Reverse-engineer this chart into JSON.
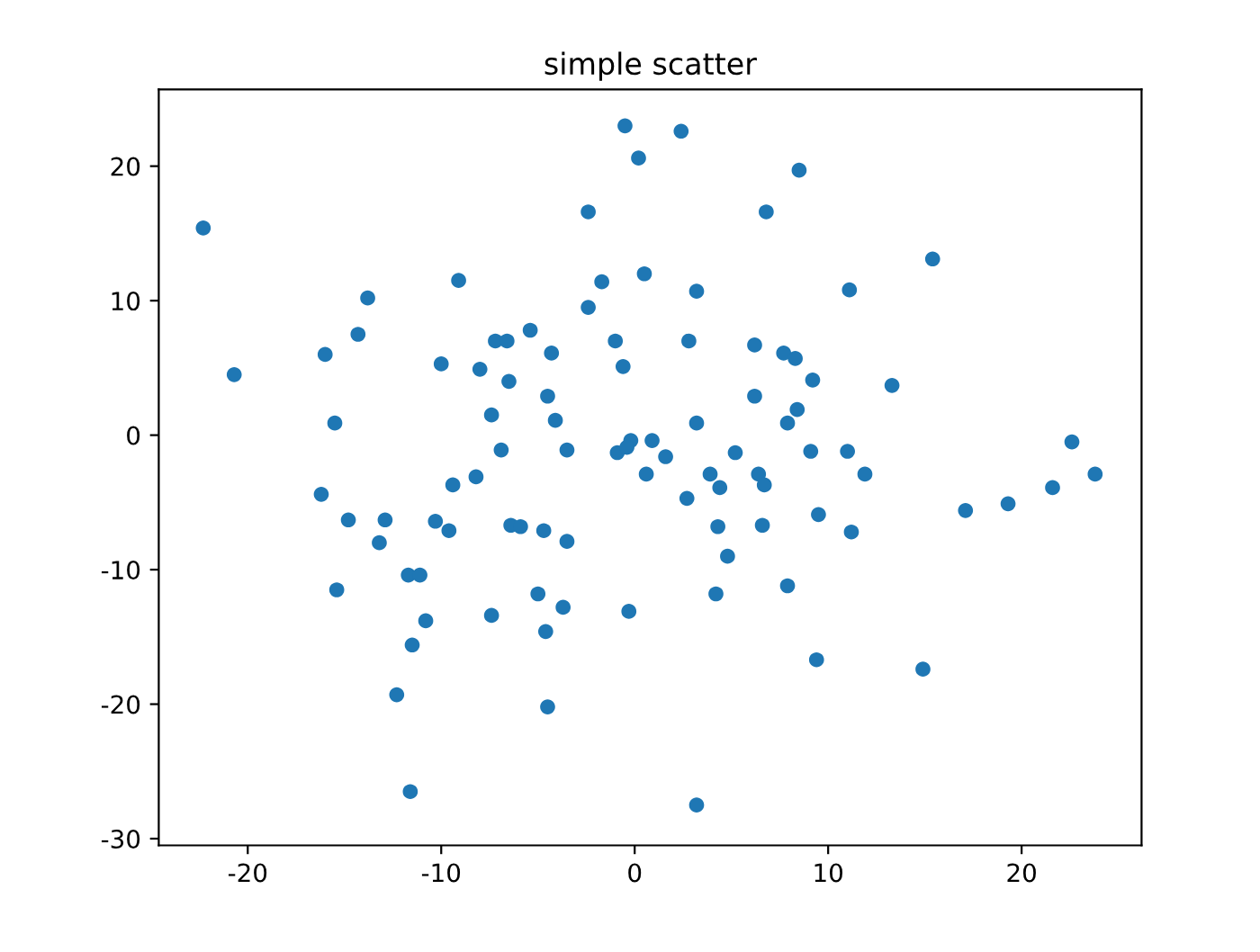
{
  "chart_data": {
    "type": "scatter",
    "title": "simple scatter",
    "x": [
      -22.3,
      -20.7,
      -16.0,
      -15.5,
      -16.2,
      -14.8,
      -15.4,
      -14.3,
      -13.8,
      -12.9,
      -13.2,
      -11.7,
      -11.1,
      -10.8,
      -11.5,
      -12.3,
      -11.6,
      -10.3,
      -9.6,
      -9.4,
      -10.0,
      -9.1,
      -8.2,
      -8.0,
      -7.2,
      -6.6,
      -7.4,
      -6.9,
      -6.5,
      -7.4,
      -6.4,
      -5.9,
      -5.4,
      -5.0,
      -4.7,
      -4.5,
      -4.3,
      -4.1,
      -4.6,
      -4.5,
      -3.7,
      -3.5,
      -3.5,
      -2.4,
      -2.4,
      -1.7,
      -1.0,
      -0.9,
      -0.6,
      -0.5,
      -0.2,
      -0.4,
      -0.3,
      0.2,
      0.5,
      0.6,
      0.9,
      1.6,
      2.4,
      2.8,
      2.7,
      3.2,
      3.2,
      3.2,
      3.9,
      4.3,
      4.2,
      4.4,
      4.8,
      5.2,
      6.2,
      6.2,
      6.4,
      6.7,
      6.6,
      6.8,
      7.7,
      7.9,
      8.3,
      8.4,
      7.9,
      8.5,
      9.2,
      9.1,
      9.5,
      9.4,
      11.0,
      11.1,
      11.2,
      11.9,
      13.3,
      15.4,
      14.9,
      17.1,
      19.3,
      21.6,
      22.6,
      23.8
    ],
    "values": [
      15.4,
      4.5,
      6.0,
      0.9,
      -4.4,
      -6.3,
      -11.5,
      7.5,
      10.2,
      -6.3,
      -8.0,
      -10.4,
      -10.4,
      -13.8,
      -15.6,
      -19.3,
      -26.5,
      -6.4,
      -7.1,
      -3.7,
      5.3,
      11.5,
      -3.1,
      4.9,
      7.0,
      7.0,
      1.5,
      -1.1,
      4.0,
      -13.4,
      -6.7,
      -6.8,
      7.8,
      -11.8,
      -7.1,
      2.9,
      6.1,
      1.1,
      -14.6,
      -20.2,
      -12.8,
      -7.9,
      -1.1,
      9.5,
      16.6,
      11.4,
      7.0,
      -1.3,
      5.1,
      23.0,
      -0.4,
      -0.9,
      -13.1,
      20.6,
      12.0,
      -2.9,
      -0.4,
      -1.6,
      22.6,
      7.0,
      -4.7,
      10.7,
      0.9,
      -27.5,
      -2.9,
      -6.8,
      -11.8,
      -3.9,
      -9.0,
      -1.3,
      6.7,
      2.9,
      -2.9,
      -3.7,
      -6.7,
      16.6,
      6.1,
      0.9,
      5.7,
      1.9,
      -11.2,
      19.7,
      4.1,
      -1.2,
      -5.9,
      -16.7,
      -1.2,
      10.8,
      -7.2,
      -2.9,
      3.7,
      13.1,
      -17.4,
      -5.6,
      -5.1,
      -3.9,
      -0.5,
      -2.9
    ],
    "color": "#1f77b4",
    "marker": "circle",
    "xlim": [
      -24.6,
      26.2
    ],
    "ylim": [
      -30.5,
      25.7
    ],
    "xticks": [
      -20,
      -10,
      0,
      10,
      20
    ],
    "yticks": [
      -30,
      -20,
      -10,
      0,
      10,
      20
    ],
    "grid": false
  }
}
